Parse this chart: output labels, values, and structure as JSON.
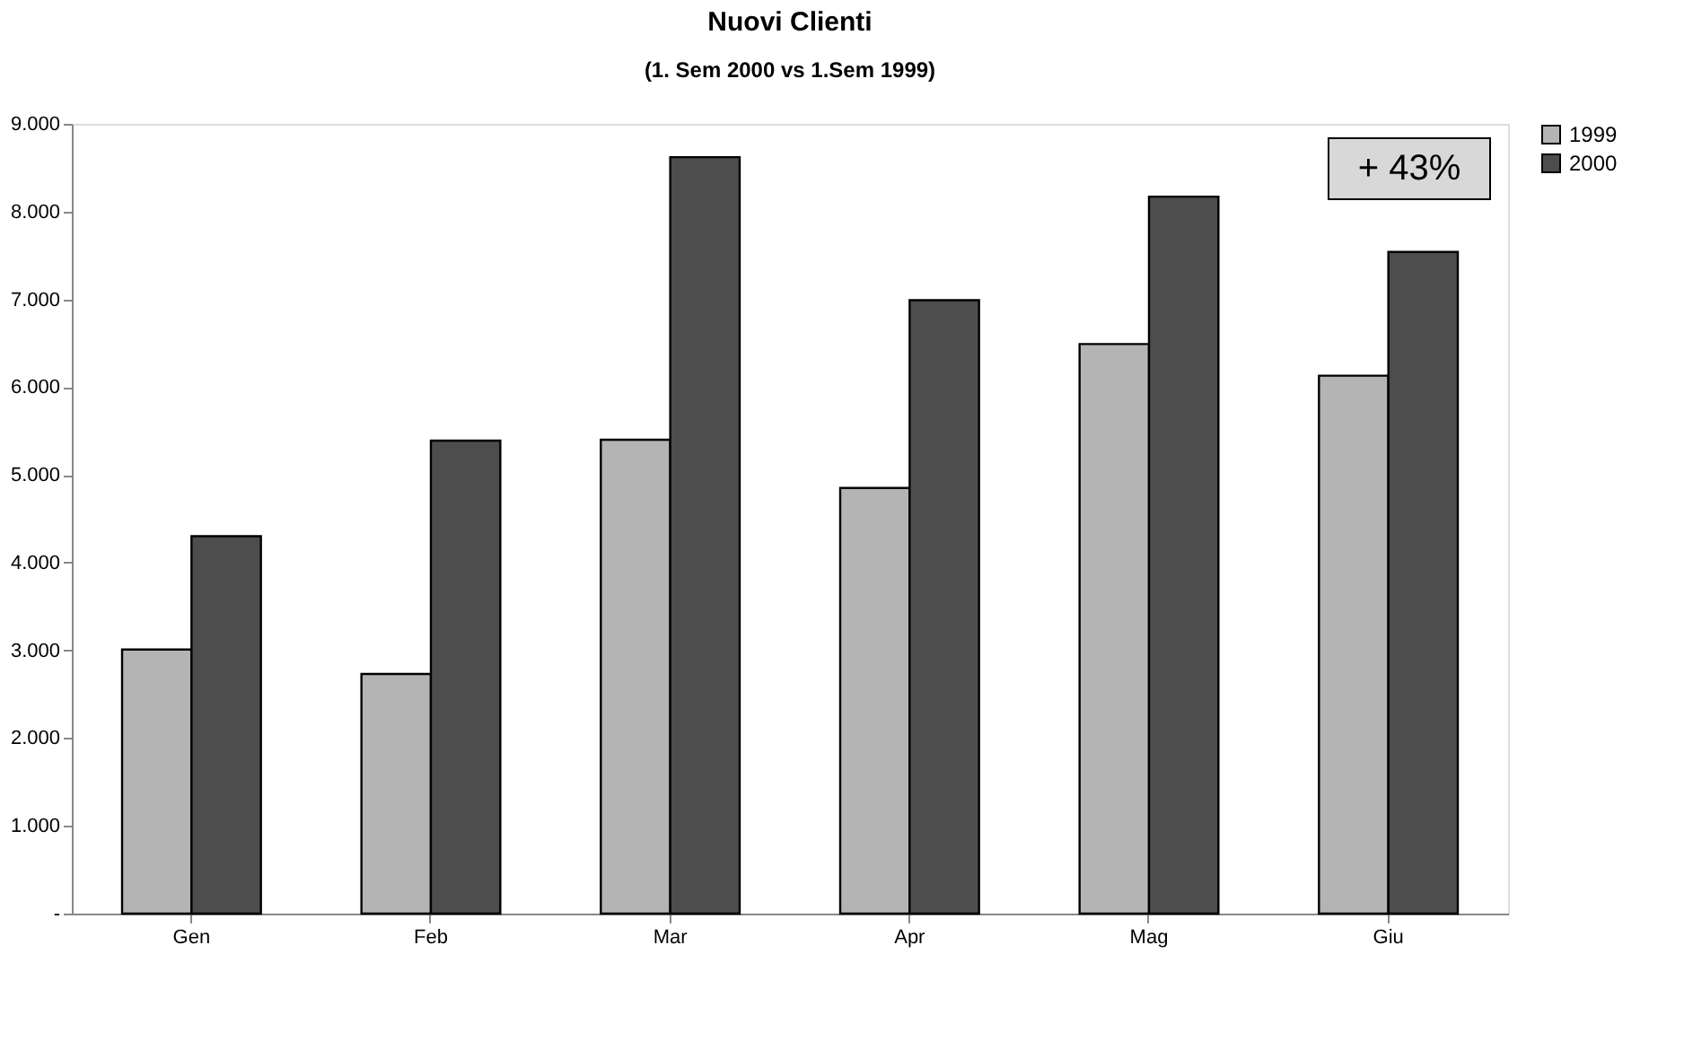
{
  "chart_data": {
    "type": "bar",
    "title": "Nuovi Clienti",
    "subtitle": "(1. Sem 2000 vs 1.Sem 1999)",
    "categories": [
      "Gen",
      "Feb",
      "Mar",
      "Apr",
      "Mag",
      "Giu"
    ],
    "series": [
      {
        "name": "1999",
        "color": "#b4b4b4",
        "values": [
          3010,
          2730,
          5400,
          4850,
          6490,
          6130
        ]
      },
      {
        "name": "2000",
        "color": "#4d4d4d",
        "values": [
          4300,
          5390,
          8620,
          6990,
          8170,
          7540
        ]
      }
    ],
    "ylim": [
      0,
      9000
    ],
    "yticks": [
      {
        "value": 0,
        "label": "-"
      },
      {
        "value": 1000,
        "label": "1.000"
      },
      {
        "value": 2000,
        "label": "2.000"
      },
      {
        "value": 3000,
        "label": "3.000"
      },
      {
        "value": 4000,
        "label": "4.000"
      },
      {
        "value": 5000,
        "label": "5.000"
      },
      {
        "value": 6000,
        "label": "6.000"
      },
      {
        "value": 7000,
        "label": "7.000"
      },
      {
        "value": 8000,
        "label": "8.000"
      },
      {
        "value": 9000,
        "label": "9.000"
      }
    ],
    "annotations": [
      "+ 43%"
    ],
    "grid": false,
    "legend": "right"
  }
}
